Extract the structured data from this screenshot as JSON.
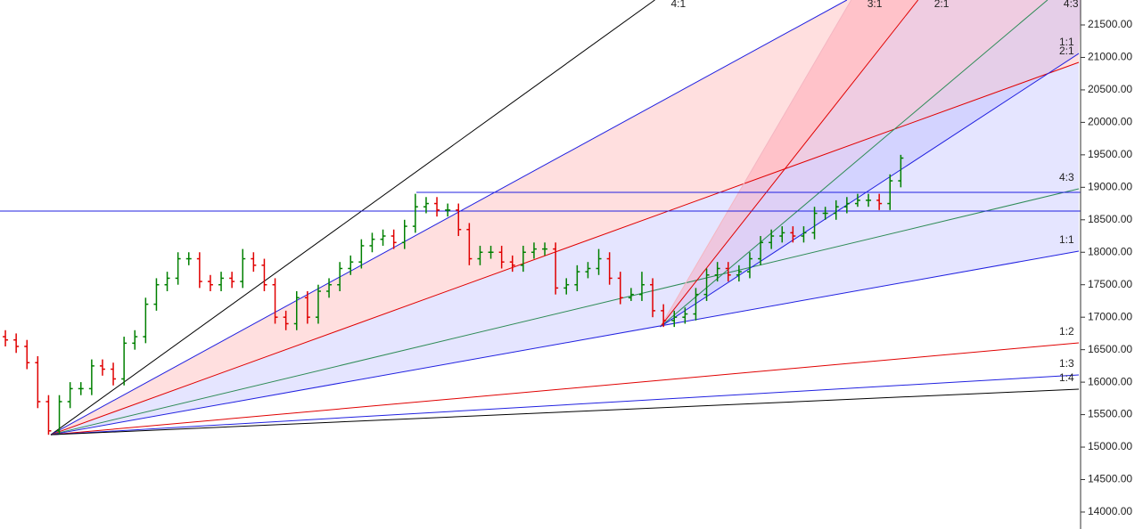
{
  "chart_data": {
    "type": "ohlc",
    "xlim": [
      0,
      100
    ],
    "ylim": [
      13739,
      21884
    ],
    "yticks": [
      {
        "value": 14000,
        "label": "14000.00"
      },
      {
        "value": 14500,
        "label": "14500.00"
      },
      {
        "value": 15000,
        "label": "15000.00"
      },
      {
        "value": 15500,
        "label": "15500.00"
      },
      {
        "value": 16000,
        "label": "16000.00"
      },
      {
        "value": 16500,
        "label": "16500.00"
      },
      {
        "value": 17000,
        "label": "17000.00"
      },
      {
        "value": 17500,
        "label": "17500.00"
      },
      {
        "value": 18000,
        "label": "18000.00"
      },
      {
        "value": 18500,
        "label": "18500.00"
      },
      {
        "value": 19000,
        "label": "19000.00"
      },
      {
        "value": 19500,
        "label": "19500.00"
      },
      {
        "value": 20000,
        "label": "20000.00"
      },
      {
        "value": 20500,
        "label": "20500.00"
      },
      {
        "value": 21000,
        "label": "21000.00"
      },
      {
        "value": 21500,
        "label": "21500.00"
      }
    ],
    "up_color": "#008000",
    "down_color": "#e00000",
    "open": [
      16700,
      16650,
      16550,
      16300,
      15700,
      15250,
      15700,
      15900,
      15900,
      16250,
      16200,
      16050,
      16600,
      16700,
      17200,
      17500,
      17600,
      17900,
      17900,
      17550,
      17500,
      17600,
      17550,
      17900,
      17800,
      17500,
      17000,
      16900,
      17300,
      17000,
      17400,
      17500,
      17750,
      17850,
      18100,
      18200,
      18250,
      18150,
      18400,
      18700,
      18750,
      18650,
      18650,
      18350,
      17900,
      18000,
      18000,
      17850,
      17800,
      18000,
      18050,
      18050,
      17450,
      17500,
      17700,
      17750,
      17900,
      17600,
      17300,
      17350,
      17500,
      17100,
      16950,
      17000,
      17050,
      17350,
      17650,
      17750,
      17650,
      17700,
      17900,
      18150,
      18250,
      18300,
      18250,
      18300,
      18600,
      18600,
      18700,
      18750,
      18800,
      18800,
      18750,
      19100
    ],
    "high": [
      16800,
      16750,
      16650,
      16400,
      15800,
      15800,
      16000,
      16000,
      16350,
      16350,
      16300,
      16700,
      16800,
      17300,
      17600,
      17700,
      18000,
      18000,
      18000,
      17650,
      17700,
      17700,
      18050,
      18000,
      17900,
      17600,
      17100,
      17400,
      17400,
      17500,
      17600,
      17850,
      17950,
      18200,
      18300,
      18350,
      18350,
      18500,
      18900,
      18850,
      18850,
      18750,
      18750,
      18450,
      18100,
      18100,
      18100,
      17950,
      18100,
      18150,
      18150,
      18150,
      17600,
      17800,
      17850,
      18050,
      18000,
      17700,
      17450,
      17700,
      17600,
      17200,
      17100,
      17150,
      17450,
      17750,
      17850,
      17850,
      17800,
      18000,
      18250,
      18350,
      18400,
      18400,
      18400,
      18700,
      18700,
      18800,
      18850,
      18900,
      18900,
      18900,
      19200,
      19500
    ],
    "low": [
      16550,
      16450,
      16200,
      15600,
      15190,
      15200,
      15600,
      15800,
      15800,
      16100,
      15950,
      15950,
      16500,
      16600,
      17100,
      17400,
      17500,
      17800,
      17450,
      17400,
      17400,
      17450,
      17450,
      17700,
      17400,
      16900,
      16800,
      16800,
      16900,
      16900,
      17300,
      17400,
      17650,
      17750,
      18000,
      18100,
      18050,
      18050,
      18300,
      18600,
      18550,
      18550,
      18250,
      17800,
      17800,
      17900,
      17750,
      17700,
      17700,
      17900,
      17950,
      17350,
      17350,
      17400,
      17600,
      17650,
      17500,
      17200,
      17250,
      17250,
      17000,
      16850,
      16850,
      16900,
      16950,
      17250,
      17550,
      17550,
      17550,
      17600,
      17800,
      18050,
      18150,
      18150,
      18150,
      18200,
      18500,
      18500,
      18600,
      18700,
      18700,
      18650,
      18650,
      19000
    ],
    "close": [
      16650,
      16550,
      16300,
      15700,
      15250,
      15700,
      15900,
      15900,
      16250,
      16200,
      16050,
      16600,
      16700,
      17200,
      17500,
      17600,
      17900,
      17900,
      17550,
      17500,
      17600,
      17550,
      17900,
      17800,
      17500,
      17000,
      16900,
      17300,
      17000,
      17400,
      17500,
      17750,
      17850,
      18100,
      18200,
      18250,
      18150,
      18400,
      18700,
      18750,
      18650,
      18650,
      18350,
      17900,
      18000,
      18000,
      17850,
      17800,
      18000,
      18050,
      18050,
      17450,
      17500,
      17700,
      17750,
      17900,
      17600,
      17300,
      17350,
      17500,
      17100,
      16950,
      17000,
      17050,
      17350,
      17650,
      17750,
      17650,
      17700,
      17900,
      18150,
      18250,
      18300,
      18250,
      18300,
      18600,
      18600,
      18700,
      18750,
      18800,
      18800,
      18750,
      19100,
      19450
    ],
    "hlines": [
      {
        "price": 18634,
        "from": 0,
        "color": "#2020e0"
      },
      {
        "price": 18922,
        "from": 38.6,
        "color": "#2020e0"
      }
    ],
    "fans": [
      {
        "origin": [
          4.71,
          15190
        ],
        "lines": [
          {
            "label": "4:1",
            "to": [
              60.7,
              21884
            ],
            "color": "#000000"
          },
          {
            "label": null,
            "to": [
              78.5,
              21884
            ],
            "color": "#2020e0",
            "fill": "rgba(255,150,150,0.3)"
          },
          {
            "label": "2:1",
            "to": [
              100,
              20924
            ],
            "color": "#e00000",
            "fill": "rgba(170,170,255,0.3)"
          },
          {
            "label": "4:3",
            "to": [
              100,
              18977
            ],
            "color": "#2e8b57",
            "fill": "rgba(170,170,255,0.3)"
          },
          {
            "label": "1:1",
            "to": [
              100,
              18017
            ],
            "color": "#2020e0"
          },
          {
            "label": "1:2",
            "to": [
              100,
              16605
            ],
            "color": "#e00000"
          },
          {
            "label": "1:3",
            "to": [
              100,
              16111
            ],
            "color": "#2020e0"
          },
          {
            "label": "1:4",
            "to": [
              100,
              15892
            ],
            "color": "#000000"
          }
        ]
      },
      {
        "origin": [
          61.2,
          16852
        ],
        "lines": [
          {
            "label": "3:1",
            "to": [
              78.9,
              21884
            ],
            "color": "#f4b6c2",
            "fill": "rgba(255,140,160,0.35)"
          },
          {
            "label": "2:1",
            "to": [
              85.1,
              21884
            ],
            "color": "#e00000",
            "fill": "rgba(210,170,230,0.35)"
          },
          {
            "label": "4:3",
            "to": [
              97.1,
              21884
            ],
            "color": "#2e8b57",
            "fill": "rgba(170,170,255,0.3)"
          },
          {
            "label": "1:1",
            "to": [
              100,
              21061
            ],
            "color": "#2020e0"
          }
        ]
      }
    ]
  }
}
